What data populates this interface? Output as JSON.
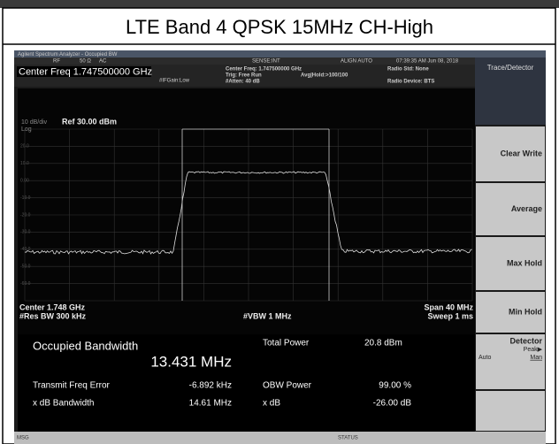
{
  "header": {
    "title": "LTE Band 4 QPSK 15MHz CH-High"
  },
  "window": {
    "title": "Agilent Spectrum Analyzer - Occupied BW",
    "status": {
      "rf": "RF",
      "impedance": "50 Ω",
      "coupling": "AC",
      "sense": "SENSE:INT",
      "align": "ALIGN AUTO",
      "datetime": "07:39:35 AM Jun 08, 2018"
    },
    "settings": {
      "center_freq": "Center Freq 1.747500000 GHz",
      "if_gain": "#IFGain:Low",
      "center_freq_info": "Center Freq: 1.747500000 GHz",
      "trig": "Trig: Free Run",
      "avg_hold": "Avg|Hold:>100/100",
      "atten": "#Atten: 40 dB",
      "radio_std": "Radio Std: None",
      "radio_device": "Radio Device: BTS"
    },
    "graph": {
      "scale": "10 dB/div",
      "ref": "Ref 30.00 dBm",
      "log": "Log",
      "y_labels": [
        "20.0",
        "10.0",
        "0.00",
        "-10.0",
        "-20.0",
        "-30.0",
        "-40.0",
        "-50.0",
        "-60.0"
      ],
      "center": "Center 1.748 GHz",
      "res_bw": "#Res BW 300 kHz",
      "vbw": "#VBW 1 MHz",
      "span": "Span 40 MHz",
      "sweep": "Sweep 1 ms"
    },
    "measurements": {
      "obw_label": "Occupied Bandwidth",
      "obw_value": "13.431 MHz",
      "total_power_label": "Total Power",
      "total_power_value": "20.8 dBm",
      "freq_error_label": "Transmit Freq Error",
      "freq_error_value": "-6.892 kHz",
      "obw_power_label": "OBW Power",
      "obw_power_value": "99.00 %",
      "xdb_bw_label": "x dB Bandwidth",
      "xdb_bw_value": "14.61 MHz",
      "xdb_label": "x dB",
      "xdb_value": "-26.00 dB"
    },
    "softkeys": {
      "menu": "Trace/Detector",
      "keys": [
        "Clear Write",
        "Average",
        "Max Hold",
        "Min Hold"
      ],
      "detector": "Detector",
      "detector_value": "Peak▶",
      "auto": "Auto",
      "man": "Man"
    },
    "footer": {
      "msg": "MSG",
      "status": "STATUS"
    }
  }
}
